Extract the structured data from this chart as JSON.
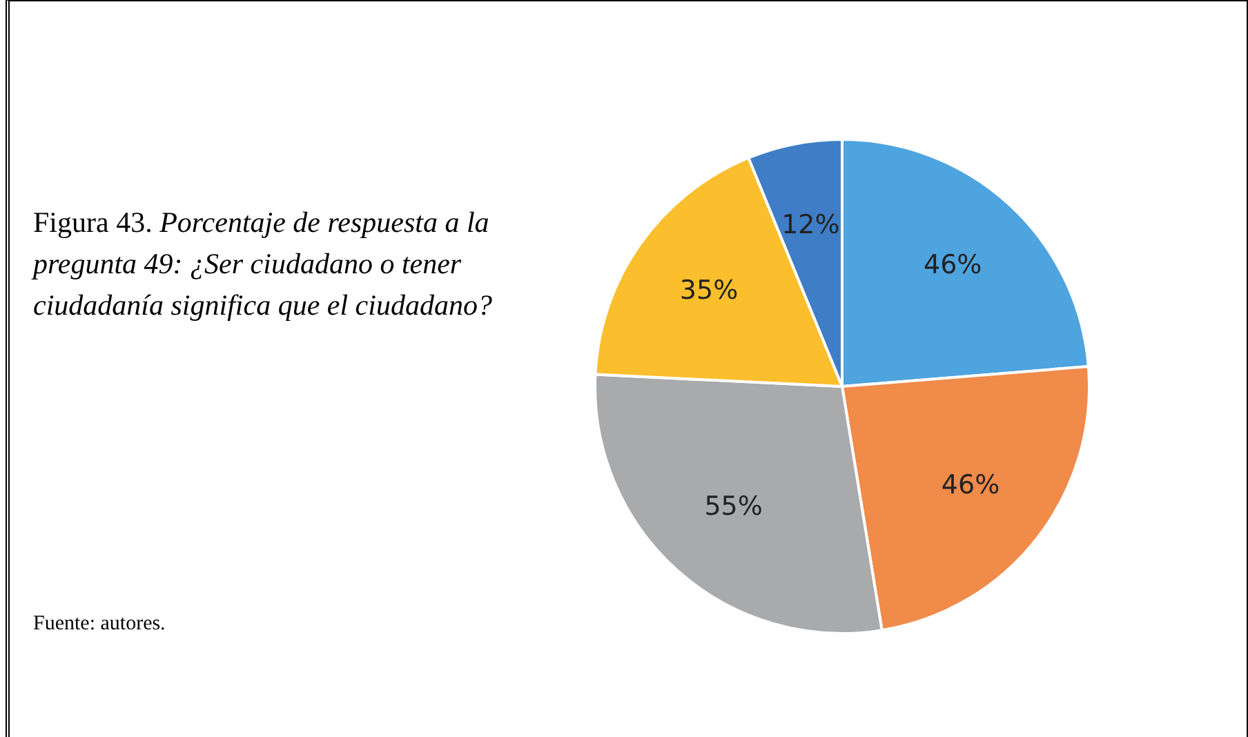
{
  "chart_data": {
    "type": "pie",
    "title": "Figura 43. Porcentaje de respuesta a la pregunta 49: ¿Ser ciudadano o tener ciudadanía significa que el ciudadano?",
    "categories": [
      null,
      null,
      null,
      null,
      null
    ],
    "values": [
      46,
      46,
      55,
      35,
      12
    ],
    "value_labels": [
      "46%",
      "46%",
      "55%",
      "35%",
      "12%"
    ],
    "colors": [
      "#4ea4de",
      "#f08b4a",
      "#a9aaac",
      "#fbbf2d",
      "#3f7ec6"
    ],
    "legend": false,
    "annotations": [
      "Fuente: autores."
    ]
  }
}
